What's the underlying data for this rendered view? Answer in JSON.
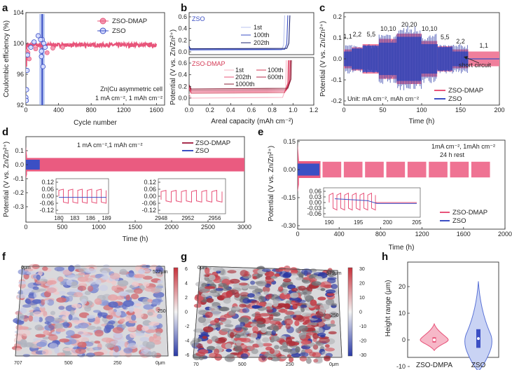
{
  "colors": {
    "dmap": "#e8547a",
    "zso": "#3b4fc4",
    "dmap_light": "#f39ab2",
    "zso_light": "#6a86e3",
    "axis": "#333333"
  },
  "panels": {
    "a": {
      "label": "a",
      "xlabel": "Cycle number",
      "ylabel": "Coulombic efficiency (%)",
      "xticks": [
        "0",
        "400",
        "800",
        "1200",
        "1600"
      ],
      "yticks": [
        "92",
        "96",
        "100",
        "104"
      ],
      "legend": [
        "ZSO-DMAP",
        "ZSO"
      ],
      "note1": "Zn|Cu asymmetric cell",
      "note2": "1 mA cm⁻², 1 mAh cm⁻²"
    },
    "b": {
      "label": "b",
      "xlabel": "Areal capacity (mAh cm⁻²)",
      "ylabel": "Potential (V vs. Zn/Zn²⁺)",
      "xticks": [
        "0.0",
        "0.2",
        "0.4",
        "0.6",
        "0.8",
        "1.0",
        "1.2"
      ],
      "top_yticks": [
        "0.6",
        "0.4",
        "0.2",
        "0.0"
      ],
      "bot_yticks": [
        "0.6",
        "0.4",
        "0.2",
        "0.0"
      ],
      "top_title": "ZSO",
      "bot_title": "ZSO-DMAP",
      "top_legend": [
        "1st",
        "100th",
        "202th"
      ],
      "bot_legend_left": [
        "1st",
        "202th",
        "1000th"
      ],
      "bot_legend_right": [
        "100th",
        "600th"
      ]
    },
    "c": {
      "label": "c",
      "xlabel": "Time (h)",
      "ylabel": "Potential (V vs. Zn/Zn²⁺)",
      "xticks": [
        "0",
        "50",
        "100",
        "150",
        "200"
      ],
      "yticks": [
        "0.2",
        "0.1",
        "0.0",
        "-0.1",
        "-0.2"
      ],
      "rates": [
        "1,1",
        "2,2",
        "5,5",
        "10,10",
        "20,20",
        "10,10",
        "5,5",
        "2,2",
        "1,1"
      ],
      "short_circuit": "short circuit",
      "unit": "Unit: mA cm⁻², mAh cm⁻²",
      "legend": [
        "ZSO-DMAP",
        "ZSO"
      ]
    },
    "d": {
      "label": "d",
      "xlabel": "Time (h)",
      "ylabel": "Potential (V vs. Zn/Zn²⁺)",
      "xticks": [
        "0",
        "500",
        "1000",
        "1500",
        "2000",
        "2500",
        "3000"
      ],
      "yticks": [
        "0.1",
        "0.0",
        "-0.1",
        "-0.2",
        "-0.3"
      ],
      "cond": "1 mA cm⁻²,1 mAh cm⁻²",
      "legend": [
        "ZSO-DMAP",
        "ZSO"
      ],
      "inset1_xticks": [
        "180",
        "183",
        "186",
        "189"
      ],
      "inset1_yticks": [
        "0.12",
        "0.06",
        "0.00",
        "-0.06",
        "-0.12"
      ],
      "inset2_xticks": [
        "2948",
        "2952",
        "2956"
      ],
      "inset2_yticks": [
        "0.12",
        "0.06",
        "0.00",
        "-0.06",
        "-0.12"
      ]
    },
    "e": {
      "label": "e",
      "xlabel": "Time (h)",
      "ylabel": "Potential (V vs. Zn/Zn²⁺)",
      "xticks": [
        "0",
        "400",
        "800",
        "1200",
        "1600",
        "2000"
      ],
      "yticks": [
        "0.15",
        "0.00",
        "-0.15",
        "-0.30"
      ],
      "cond1": "1mA cm⁻², 1mAh cm⁻²",
      "cond2": "24 h rest",
      "legend": [
        "ZSO-DMAP",
        "ZSO"
      ],
      "inset_xticks": [
        "190",
        "195",
        "200",
        "205"
      ],
      "inset_yticks": [
        "0.06",
        "0.03",
        "0.00",
        "-0.03",
        "-0.06"
      ]
    },
    "f": {
      "label": "f",
      "cb_ticks": [
        "6",
        "4",
        "2",
        "0",
        "-2",
        "-4",
        "-6"
      ],
      "tick_top": "522μm",
      "tick_mid": "250",
      "tick_bl": "707",
      "tick_b2": "500",
      "tick_b3": "250",
      "tick_b4": "0μm",
      "tick_tl": "0μm"
    },
    "g": {
      "label": "g",
      "cb_ticks": [
        "30",
        "20",
        "10",
        "0",
        "-10",
        "-20",
        "-30"
      ],
      "tick_top": "579μm",
      "tick_mid": "250",
      "tick_bl": "70",
      "tick_b2": "500",
      "tick_b3": "250",
      "tick_b4": "0μm",
      "tick_tl": "0μm"
    },
    "h": {
      "label": "h",
      "ylabel": "Height range (μm)",
      "yticks": [
        "20",
        "10",
        "0",
        "-10"
      ],
      "categories": [
        "ZSO-DMPA",
        "ZSO"
      ]
    }
  },
  "chart_data": [
    {
      "type": "scatter",
      "panel": "a",
      "xlabel": "Cycle number",
      "ylabel": "Coulombic efficiency (%)",
      "xlim": [
        0,
        1700
      ],
      "ylim": [
        92,
        104
      ],
      "series": [
        {
          "name": "ZSO-DMAP",
          "x": [
            0,
            20,
            50,
            100,
            200,
            400,
            600,
            800,
            1000,
            1200,
            1400,
            1600
          ],
          "y": [
            94,
            99.2,
            99.6,
            99.8,
            99.8,
            99.8,
            99.8,
            99.8,
            99.8,
            99.8,
            99.8,
            99.8
          ]
        },
        {
          "name": "ZSO",
          "x": [
            0,
            20,
            60,
            100,
            150,
            190,
            200,
            210
          ],
          "y": [
            93,
            98.5,
            99.5,
            100.2,
            101,
            98.3,
            100.5,
            97
          ]
        }
      ]
    },
    {
      "type": "line",
      "panel": "b",
      "xlabel": "Areal capacity (mAh cm⁻²)",
      "xlim": [
        0,
        1.2
      ]
    },
    {
      "type": "line",
      "panel": "c",
      "xlabel": "Time (h)",
      "xlim": [
        0,
        200
      ],
      "ylim": [
        -0.2,
        0.2
      ]
    },
    {
      "type": "line",
      "panel": "d",
      "xlabel": "Time (h)",
      "xlim": [
        0,
        3000
      ],
      "ylim": [
        -0.3,
        0.15
      ]
    },
    {
      "type": "line",
      "panel": "e",
      "xlabel": "Time (h)",
      "xlim": [
        0,
        2000
      ],
      "ylim": [
        -0.3,
        0.15
      ]
    },
    {
      "type": "violin",
      "panel": "h",
      "categories": [
        "ZSO-DMPA",
        "ZSO"
      ],
      "ylim": [
        -15,
        25
      ],
      "ranges": [
        [
          -4,
          6
        ],
        [
          -12,
          22
        ]
      ]
    }
  ]
}
